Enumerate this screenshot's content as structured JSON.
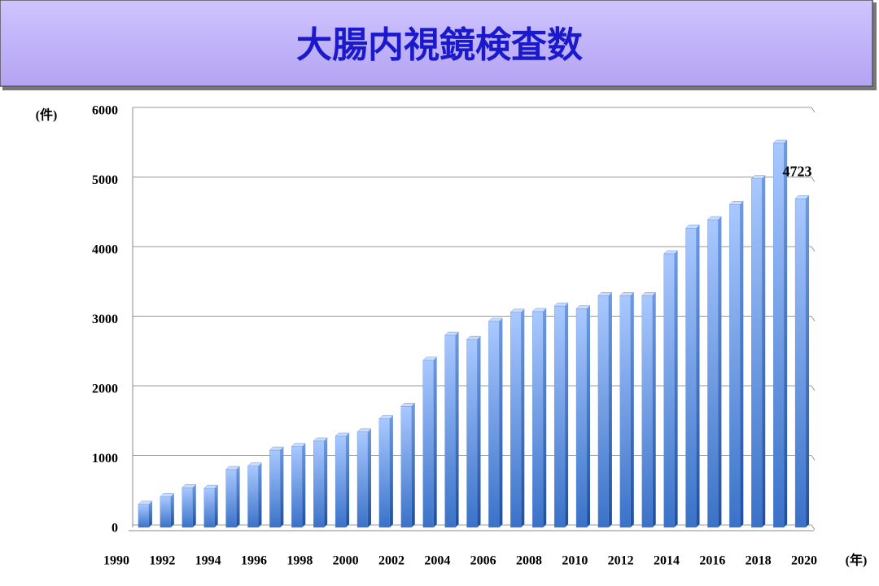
{
  "chart_data": {
    "type": "bar",
    "title": "大腸内視鏡検査数",
    "y_label": "(件)",
    "x_label": "(年)",
    "categories": [
      "1990",
      null,
      "1992",
      null,
      "1994",
      null,
      "1996",
      null,
      "1998",
      null,
      "2000",
      null,
      "2002",
      null,
      "2004",
      null,
      "2006",
      null,
      "2008",
      null,
      "2010",
      null,
      "2012",
      null,
      "2014",
      null,
      "2016",
      null,
      "2018",
      null,
      "2020"
    ],
    "series": [
      {
        "name": "大腸内視鏡検査数",
        "color": "#4f86d8",
        "values": [
          330,
          440,
          570,
          560,
          830,
          880,
          1110,
          1160,
          1240,
          1310,
          1370,
          1560,
          1740,
          2400,
          2760,
          2700,
          2960,
          3090,
          3100,
          3180,
          3140,
          3330,
          3330,
          3330,
          3930,
          4300,
          4420,
          4640,
          5010,
          5520,
          4723
        ]
      }
    ],
    "ylim": [
      0,
      6000
    ],
    "yticks": [
      0,
      1000,
      2000,
      3000,
      4000,
      5000,
      6000
    ],
    "grid": true,
    "data_label_color": "#e00000"
  }
}
